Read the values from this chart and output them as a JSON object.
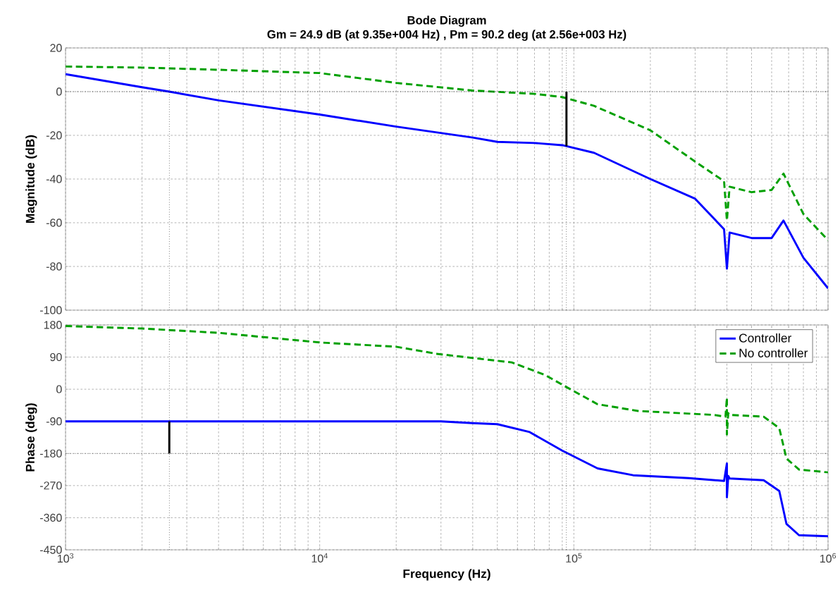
{
  "chart_data": [
    {
      "type": "line",
      "title": "Bode Diagram",
      "subtitle": "Gm = 24.9 dB (at 9.35e+004 Hz) ,  Pm = 90.2 deg (at 2.56e+003 Hz)",
      "ylabel": "Magnitude (dB)",
      "log": "x",
      "grid": true,
      "tick_labels": "y",
      "xlim": [
        1000,
        1000000
      ],
      "xticks": [
        {
          "value": 1000,
          "label": null
        },
        {
          "value": 10000,
          "label": null
        },
        {
          "value": 100000,
          "label": null
        },
        {
          "value": 1000000,
          "label": null
        }
      ],
      "ylim": [
        -100,
        20
      ],
      "yticks": [
        -100,
        -80,
        -60,
        -40,
        -20,
        0,
        20
      ],
      "ref_lines": [
        {
          "axis": "x",
          "value": 2560,
          "color": "#000000",
          "line_style": "dotted"
        },
        {
          "axis": "x",
          "value": 93500,
          "color": "#000000",
          "line_style": "dotted"
        },
        {
          "axis": "y",
          "value": 0,
          "color": "#000000",
          "line_style": "dotted"
        }
      ],
      "series": [
        {
          "color": "#0000ff",
          "line_style": "solid",
          "x": [
            1000,
            2000,
            2560,
            4000,
            10000,
            20000,
            40000,
            50000,
            70000,
            90000,
            120000,
            200000,
            300000,
            390000,
            400000,
            410000,
            500000,
            600000,
            668000,
            800000,
            1000000
          ],
          "values": [
            8,
            2,
            0,
            -4,
            -10.5,
            -16,
            -21,
            -23,
            -23.5,
            -24.5,
            -28,
            -40,
            -49,
            -63,
            -81,
            -64.5,
            -67,
            -67,
            -59,
            -76,
            -90
          ]
        },
        {
          "color": "#00a000",
          "line_style": "dashed",
          "x": [
            1000,
            2000,
            4000,
            10000,
            20000,
            40000,
            70000,
            90000,
            120000,
            200000,
            300000,
            390000,
            400000,
            410000,
            500000,
            600000,
            668000,
            800000,
            1000000
          ],
          "values": [
            11.5,
            11,
            10,
            8.5,
            4,
            0.5,
            -1,
            -2.5,
            -6.5,
            -17.7,
            -32,
            -41,
            -59,
            -43.5,
            -46,
            -45,
            -37.5,
            -56,
            -68
          ]
        },
        {
          "color": "#000000",
          "line_style": "solid",
          "x": [
            93500,
            93500
          ],
          "values": [
            0,
            -24.9
          ]
        }
      ]
    },
    {
      "type": "line",
      "xlabel": "Frequency  (Hz)",
      "ylabel": "Phase (deg)",
      "log": "x",
      "grid": true,
      "legend": "top right",
      "xlim": [
        1000,
        1000000
      ],
      "xticks": [
        {
          "value": 1000,
          "label": "10$^{3}$"
        },
        {
          "value": 10000,
          "label": "10$^{4}$"
        },
        {
          "value": 100000,
          "label": "10$^{5}$"
        },
        {
          "value": 1000000,
          "label": "10$^{6}$"
        }
      ],
      "ylim": [
        -450,
        180
      ],
      "yticks": [
        -450,
        -360,
        -270,
        -180,
        -90,
        0,
        90,
        180
      ],
      "ref_lines": [
        {
          "axis": "x",
          "value": 2560,
          "color": "#000000",
          "line_style": "dotted"
        },
        {
          "axis": "x",
          "value": 93500,
          "color": "#000000",
          "line_style": "dotted"
        },
        {
          "axis": "y",
          "value": -180,
          "color": "#000000",
          "line_style": "dotted"
        }
      ],
      "series": [
        {
          "name": "Controller",
          "color": "#0000ff",
          "line_style": "solid",
          "x": [
            1000,
            10000,
            30000,
            40000,
            50000,
            67000,
            90000,
            124000,
            171000,
            283000,
            390000,
            400000,
            400001,
            405000,
            410000,
            558000,
            643000,
            686000,
            769000,
            1000000
          ],
          "values": [
            -90,
            -90,
            -90,
            -95,
            -98,
            -120,
            -172,
            -222,
            -241,
            -249,
            -257,
            -208,
            -303,
            -243,
            -250,
            -255,
            -285,
            -377,
            -409,
            -412
          ]
        },
        {
          "name": "No controller",
          "color": "#00a000",
          "line_style": "dashed",
          "x": [
            1000,
            2000,
            4000,
            10000,
            20000,
            29000,
            57000,
            77000,
            94600,
            124000,
            179000,
            355000,
            395000,
            400000,
            400001,
            405000,
            410000,
            558000,
            643000,
            686000,
            769000,
            1000000
          ],
          "values": [
            177,
            170,
            158,
            131,
            119,
            99,
            75,
            40,
            4,
            -42,
            -61,
            -72,
            -77,
            -24,
            -127,
            -67,
            -72,
            -77,
            -109,
            -194,
            -225,
            -233
          ]
        },
        {
          "color": "#000000",
          "line_style": "solid",
          "x": [
            2560,
            2560
          ],
          "values": [
            -90,
            -180
          ]
        }
      ]
    }
  ]
}
